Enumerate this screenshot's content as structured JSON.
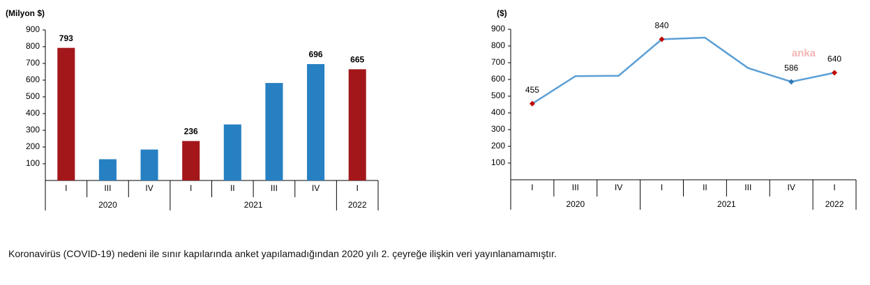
{
  "chart_data": [
    {
      "type": "bar",
      "y_label": "(Milyon $)",
      "categories": [
        "I",
        "III",
        "IV",
        "I",
        "II",
        "III",
        "IV",
        "I"
      ],
      "x_groups": [
        "2020",
        "2020",
        "2020",
        "2021",
        "2021",
        "2021",
        "2021",
        "2022"
      ],
      "values": [
        793,
        127,
        185,
        236,
        335,
        583,
        696,
        665
      ],
      "value_labels": [
        "793",
        null,
        null,
        "236",
        null,
        null,
        "696",
        "665"
      ],
      "colors": [
        "#a3171b",
        "#2680c2",
        "#2680c2",
        "#a3171b",
        "#2680c2",
        "#2680c2",
        "#2680c2",
        "#a3171b"
      ],
      "ylim": [
        0,
        900
      ],
      "yticks": [
        100,
        200,
        300,
        400,
        500,
        600,
        700,
        800,
        900
      ]
    },
    {
      "type": "line",
      "y_label": "($)",
      "categories": [
        "I",
        "III",
        "IV",
        "I",
        "II",
        "III",
        "IV",
        "I"
      ],
      "x_groups": [
        "2020",
        "2020",
        "2020",
        "2021",
        "2021",
        "2021",
        "2021",
        "2022"
      ],
      "values": [
        455,
        620,
        622,
        840,
        850,
        668,
        586,
        640
      ],
      "value_labels": [
        "455",
        null,
        null,
        "840",
        null,
        null,
        "586",
        "640"
      ],
      "color": "#5b9fd6",
      "marker_colors": [
        "#c00000",
        null,
        null,
        "#c00000",
        null,
        null,
        "#2e75b6",
        "#c00000"
      ],
      "ylim": [
        0,
        900
      ],
      "yticks": [
        100,
        200,
        300,
        400,
        500,
        600,
        700,
        800,
        900
      ]
    }
  ],
  "watermark": "anka",
  "footnote": "Koronavirüs (COVID-19) nedeni ile sınır kapılarında anket yapılamadığından 2020 yılı 2. çeyreğe ilişkin veri yayınlanamamıştır."
}
